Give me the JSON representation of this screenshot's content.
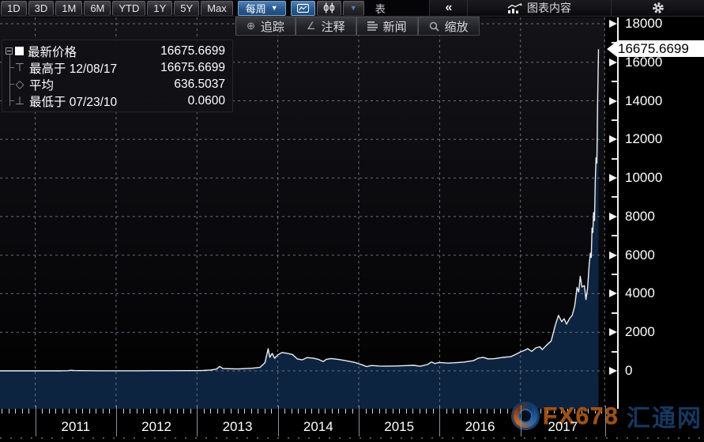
{
  "colors": {
    "accent_blue": "#2a5a8e",
    "area_fill": "#0d2440",
    "line": "#edeef1",
    "grid": "#6e6e78",
    "axis_text": "#ffffff",
    "gold_dots": "#8a6c2c",
    "tag_bg": "#ffffff"
  },
  "toolbar": {
    "ranges": [
      "1D",
      "3D",
      "1M",
      "6M",
      "YTD",
      "1Y",
      "5Y",
      "Max"
    ],
    "period_label": "每周",
    "table_label": "表",
    "collapse_label": "«",
    "chart_content_label": "图表内容"
  },
  "tools": [
    {
      "id": "track",
      "icon": "crosshair-icon",
      "label": "追踪"
    },
    {
      "id": "annotate",
      "icon": "annotate-icon",
      "label": "注释"
    },
    {
      "id": "news",
      "icon": "news-icon",
      "label": "新闻"
    },
    {
      "id": "zoom",
      "icon": "magnifier-icon",
      "label": "缩放"
    }
  ],
  "legend": {
    "rows": [
      {
        "marker": "swatch",
        "label": "最新价格",
        "date": "",
        "value": "16675.6699"
      },
      {
        "marker": "high",
        "label": "最高于",
        "date": "12/08/17",
        "value": "16675.6699"
      },
      {
        "marker": "avg",
        "label": "平均",
        "date": "",
        "value": "636.5037"
      },
      {
        "marker": "low",
        "label": "最低于",
        "date": "07/23/10",
        "value": "0.0600"
      }
    ]
  },
  "price_tag": "16675.6699",
  "watermark": {
    "fx": "FX678",
    "huitong": "汇通网"
  },
  "chart_data": {
    "type": "area",
    "title": "",
    "xlabel": "",
    "ylabel": "",
    "x_years": [
      2011,
      2012,
      2013,
      2014,
      2015,
      2016,
      2017
    ],
    "ylim": [
      0,
      18000
    ],
    "y_ticks": [
      0,
      2000,
      4000,
      6000,
      8000,
      10000,
      12000,
      14000,
      16000,
      18000
    ],
    "grid": "dashed",
    "legend_position": "top-left",
    "stats": {
      "latest": 16675.6699,
      "high": {
        "date": "12/08/17",
        "value": 16675.6699
      },
      "average": 636.5037,
      "low": {
        "date": "07/23/10",
        "value": 0.06
      }
    },
    "series": [
      {
        "name": "最新价格",
        "x_unit": "decimal_year",
        "points": [
          [
            2010.56,
            0.06
          ],
          [
            2010.75,
            0.08
          ],
          [
            2010.92,
            0.25
          ],
          [
            2011.0,
            0.3
          ],
          [
            2011.12,
            0.9
          ],
          [
            2011.3,
            1.5
          ],
          [
            2011.4,
            8
          ],
          [
            2011.44,
            30
          ],
          [
            2011.48,
            17
          ],
          [
            2011.55,
            13
          ],
          [
            2011.65,
            9
          ],
          [
            2011.8,
            5
          ],
          [
            2011.95,
            3
          ],
          [
            2012.05,
            5.5
          ],
          [
            2012.25,
            5
          ],
          [
            2012.45,
            6.5
          ],
          [
            2012.65,
            9
          ],
          [
            2012.85,
            11.5
          ],
          [
            2013.0,
            13.5
          ],
          [
            2013.08,
            20
          ],
          [
            2013.17,
            47
          ],
          [
            2013.24,
            90
          ],
          [
            2013.28,
            230
          ],
          [
            2013.32,
            120
          ],
          [
            2013.4,
            110
          ],
          [
            2013.5,
            100
          ],
          [
            2013.58,
            115
          ],
          [
            2013.68,
            135
          ],
          [
            2013.78,
            180
          ],
          [
            2013.84,
            420
          ],
          [
            2013.88,
            1150
          ],
          [
            2013.9,
            700
          ],
          [
            2013.93,
            900
          ],
          [
            2013.96,
            650
          ],
          [
            2014.0,
            830
          ],
          [
            2014.05,
            950
          ],
          [
            2014.1,
            920
          ],
          [
            2014.18,
            850
          ],
          [
            2014.24,
            620
          ],
          [
            2014.3,
            570
          ],
          [
            2014.36,
            690
          ],
          [
            2014.44,
            650
          ],
          [
            2014.5,
            600
          ],
          [
            2014.56,
            480
          ],
          [
            2014.6,
            600
          ],
          [
            2014.66,
            640
          ],
          [
            2014.75,
            590
          ],
          [
            2014.85,
            520
          ],
          [
            2014.95,
            440
          ],
          [
            2015.0,
            370
          ],
          [
            2015.05,
            300
          ],
          [
            2015.1,
            220
          ],
          [
            2015.16,
            280
          ],
          [
            2015.25,
            250
          ],
          [
            2015.35,
            240
          ],
          [
            2015.48,
            255
          ],
          [
            2015.6,
            275
          ],
          [
            2015.68,
            285
          ],
          [
            2015.76,
            237
          ],
          [
            2015.85,
            330
          ],
          [
            2015.9,
            460
          ],
          [
            2015.94,
            380
          ],
          [
            2016.0,
            435
          ],
          [
            2016.1,
            400
          ],
          [
            2016.18,
            420
          ],
          [
            2016.3,
            455
          ],
          [
            2016.42,
            530
          ],
          [
            2016.48,
            660
          ],
          [
            2016.54,
            700
          ],
          [
            2016.6,
            620
          ],
          [
            2016.68,
            630
          ],
          [
            2016.78,
            695
          ],
          [
            2016.88,
            735
          ],
          [
            2016.96,
            890
          ],
          [
            2017.0,
            985
          ],
          [
            2017.05,
            1060
          ],
          [
            2017.09,
            1150
          ],
          [
            2017.14,
            1010
          ],
          [
            2017.19,
            1190
          ],
          [
            2017.24,
            1250
          ],
          [
            2017.27,
            1100
          ],
          [
            2017.32,
            1320
          ],
          [
            2017.38,
            1550
          ],
          [
            2017.43,
            2350
          ],
          [
            2017.47,
            2880
          ],
          [
            2017.51,
            2550
          ],
          [
            2017.54,
            2700
          ],
          [
            2017.57,
            2420
          ],
          [
            2017.61,
            2730
          ],
          [
            2017.64,
            2880
          ],
          [
            2017.67,
            3350
          ],
          [
            2017.7,
            4320
          ],
          [
            2017.72,
            4090
          ],
          [
            2017.74,
            4900
          ],
          [
            2017.76,
            4350
          ],
          [
            2017.79,
            4420
          ],
          [
            2017.81,
            3700
          ],
          [
            2017.83,
            4300
          ],
          [
            2017.85,
            5510
          ],
          [
            2017.865,
            6100
          ],
          [
            2017.875,
            5880
          ],
          [
            2017.885,
            7400
          ],
          [
            2017.895,
            7170
          ],
          [
            2017.905,
            8210
          ],
          [
            2017.915,
            7790
          ],
          [
            2017.925,
            9890
          ],
          [
            2017.935,
            11050
          ],
          [
            2017.945,
            10780
          ],
          [
            2017.955,
            14050
          ],
          [
            2017.965,
            16675.6699
          ]
        ]
      }
    ]
  }
}
